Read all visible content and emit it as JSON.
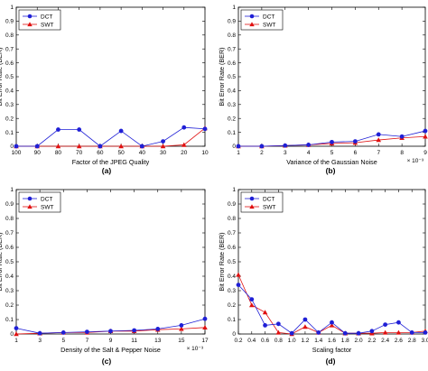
{
  "colors": {
    "dct": "#1f1fd6",
    "swt": "#e01010",
    "axis": "#000000"
  },
  "chart_data": [
    {
      "type": "line",
      "panel_label": "(a)",
      "xlabel": "Factor of the JPEG Quality",
      "ylabel": "Bit Error Rate (BER)",
      "x_exponent": "",
      "categories": [
        "100",
        "90",
        "80",
        "70",
        "60",
        "50",
        "40",
        "30",
        "20",
        "10"
      ],
      "ylim": [
        0,
        1
      ],
      "yticks": [
        "0",
        "0.1",
        "0.2",
        "0.3",
        "0.4",
        "0.5",
        "0.6",
        "0.7",
        "0.8",
        "0.9",
        "1"
      ],
      "legend": "top-left",
      "grid": false,
      "series": [
        {
          "name": "DCT",
          "marker": "circle",
          "values": [
            0,
            0,
            0.12,
            0.12,
            0,
            0.11,
            0,
            0.035,
            0.135,
            0.125
          ]
        },
        {
          "name": "SWT",
          "marker": "triangle",
          "values": [
            0,
            0,
            0,
            0,
            0,
            0,
            0,
            0,
            0.01,
            0.13
          ]
        }
      ]
    },
    {
      "type": "line",
      "panel_label": "(b)",
      "xlabel": "Variance of the Gaussian Noise",
      "ylabel": "Bit Error Rate (BER)",
      "x_exponent": "× 10⁻³",
      "categories": [
        "1",
        "2",
        "3",
        "4",
        "5",
        "6",
        "7",
        "8",
        "9"
      ],
      "ylim": [
        0,
        1
      ],
      "yticks": [
        "0",
        "0.1",
        "0.2",
        "0.3",
        "0.4",
        "0.5",
        "0.6",
        "0.7",
        "0.8",
        "0.9",
        "1"
      ],
      "legend": "top-left",
      "grid": false,
      "series": [
        {
          "name": "DCT",
          "marker": "circle",
          "values": [
            0,
            0,
            0.005,
            0.01,
            0.03,
            0.035,
            0.085,
            0.07,
            0.11
          ]
        },
        {
          "name": "SWT",
          "marker": "triangle",
          "values": [
            0,
            0,
            0.005,
            0.01,
            0.02,
            0.025,
            0.045,
            0.06,
            0.07
          ]
        }
      ]
    },
    {
      "type": "line",
      "panel_label": "(c)",
      "xlabel": "Density of the Salt & Pepper Noise",
      "ylabel": "Bit Error Rate (BER)",
      "x_exponent": "× 10⁻³",
      "categories": [
        "1",
        "3",
        "5",
        "7",
        "9",
        "11",
        "13",
        "15",
        "17"
      ],
      "ylim": [
        0,
        1
      ],
      "yticks": [
        "0",
        "0.1",
        "0.2",
        "0.3",
        "0.4",
        "0.5",
        "0.6",
        "0.7",
        "0.8",
        "0.9",
        "1"
      ],
      "legend": "top-left",
      "grid": false,
      "series": [
        {
          "name": "DCT",
          "marker": "circle",
          "values": [
            0.04,
            0.005,
            0.01,
            0.015,
            0.02,
            0.025,
            0.035,
            0.06,
            0.105
          ]
        },
        {
          "name": "SWT",
          "marker": "triangle",
          "values": [
            0,
            0.005,
            0.01,
            0.01,
            0.02,
            0.02,
            0.03,
            0.035,
            0.045
          ]
        }
      ]
    },
    {
      "type": "line",
      "panel_label": "(d)",
      "xlabel": "Scaling factor",
      "ylabel": "Bit Error Rate (BER)",
      "x_exponent": "",
      "categories": [
        "0.2",
        "0.4",
        "0.6",
        "0.8",
        "1.0",
        "1.2",
        "1.4",
        "1.6",
        "1.8",
        "2.0",
        "2.2",
        "2.4",
        "2.6",
        "2.8",
        "3.0"
      ],
      "ylim": [
        0,
        1
      ],
      "yticks": [
        "0",
        "0.1",
        "0.2",
        "0.3",
        "0.4",
        "0.5",
        "0.6",
        "0.7",
        "0.8",
        "0.9",
        "1"
      ],
      "legend": "top-left",
      "grid": false,
      "series": [
        {
          "name": "DCT",
          "marker": "circle",
          "values": [
            0.34,
            0.24,
            0.06,
            0.07,
            0.005,
            0.1,
            0.01,
            0.08,
            0.005,
            0.005,
            0.02,
            0.065,
            0.08,
            0.01,
            0.01
          ]
        },
        {
          "name": "SWT",
          "marker": "triangle",
          "values": [
            0.41,
            0.2,
            0.15,
            0.01,
            0,
            0.05,
            0.01,
            0.06,
            0.005,
            0.005,
            0.005,
            0.01,
            0.01,
            0.01,
            0.02
          ]
        }
      ]
    }
  ]
}
